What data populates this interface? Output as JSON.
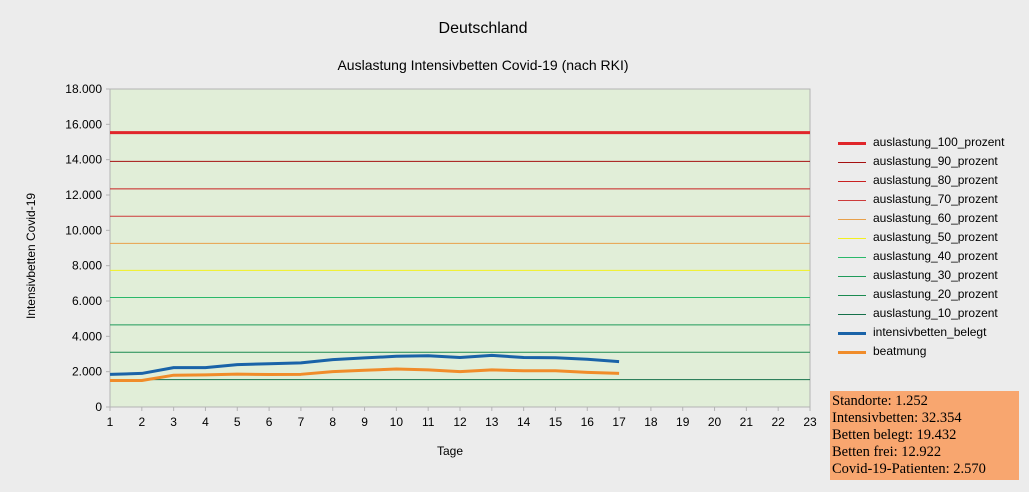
{
  "chart_data": {
    "type": "line",
    "title": "Deutschland",
    "subtitle": "Auslastung Intensivbetten Covid-19 (nach RKI)",
    "xlabel": "Tage",
    "ylabel": "Intensivbetten Covid-19",
    "xlim": [
      1,
      23
    ],
    "ylim": [
      0,
      18000
    ],
    "x_ticks": [
      "1",
      "2",
      "3",
      "4",
      "5",
      "6",
      "7",
      "8",
      "9",
      "10",
      "11",
      "12",
      "13",
      "14",
      "15",
      "16",
      "17",
      "18",
      "19",
      "20",
      "21",
      "22",
      "23"
    ],
    "y_ticks": [
      {
        "value": 0,
        "label": "0"
      },
      {
        "value": 2000,
        "label": "2.000"
      },
      {
        "value": 4000,
        "label": "4.000"
      },
      {
        "value": 6000,
        "label": "6.000"
      },
      {
        "value": 8000,
        "label": "8.000"
      },
      {
        "value": 10000,
        "label": "10.000"
      },
      {
        "value": 12000,
        "label": "12.000"
      },
      {
        "value": 14000,
        "label": "14.000"
      },
      {
        "value": 16000,
        "label": "16.000"
      },
      {
        "value": 18000,
        "label": "18.000"
      }
    ],
    "grid": false,
    "background": "#e1eed8",
    "legend_position": "right",
    "reference_lines": [
      {
        "name": "auslastung_100_prozent",
        "value": 15530,
        "color": "#e0262a",
        "bold": true
      },
      {
        "name": "auslastung_90_prozent",
        "value": 13900,
        "color": "#a51010",
        "bold": false
      },
      {
        "name": "auslastung_80_prozent",
        "value": 12350,
        "color": "#c92020",
        "bold": false
      },
      {
        "name": "auslastung_70_prozent",
        "value": 10800,
        "color": "#cd3a3a",
        "bold": false
      },
      {
        "name": "auslastung_60_prozent",
        "value": 9260,
        "color": "#e8a04a",
        "bold": false
      },
      {
        "name": "auslastung_50_prozent",
        "value": 7730,
        "color": "#f2f020",
        "bold": false
      },
      {
        "name": "auslastung_40_prozent",
        "value": 6200,
        "color": "#2ab86a",
        "bold": false
      },
      {
        "name": "auslastung_30_prozent",
        "value": 4650,
        "color": "#1f9a5a",
        "bold": false
      },
      {
        "name": "auslastung_20_prozent",
        "value": 3100,
        "color": "#1a8a50",
        "bold": false
      },
      {
        "name": "auslastung_10_prozent",
        "value": 1550,
        "color": "#15704a",
        "bold": false
      }
    ],
    "series": [
      {
        "name": "intensivbetten_belegt",
        "color": "#1a63a8",
        "x": [
          1,
          2,
          3,
          4,
          5,
          6,
          7,
          8,
          9,
          10,
          11,
          12,
          13,
          14,
          15,
          16,
          17
        ],
        "values": [
          1850,
          1900,
          2230,
          2230,
          2400,
          2450,
          2500,
          2680,
          2780,
          2870,
          2900,
          2800,
          2920,
          2800,
          2790,
          2700,
          2570
        ]
      },
      {
        "name": "beatmung",
        "color": "#f08c2a",
        "x": [
          1,
          2,
          3,
          4,
          5,
          6,
          7,
          8,
          9,
          10,
          11,
          12,
          13,
          14,
          15,
          16,
          17
        ],
        "values": [
          1500,
          1500,
          1800,
          1820,
          1860,
          1840,
          1850,
          2000,
          2080,
          2150,
          2100,
          2000,
          2100,
          2050,
          2050,
          1960,
          1900
        ]
      }
    ]
  },
  "info_box": {
    "color": "#f8a66f",
    "lines": [
      "Standorte: 1.252",
      "Intensivbetten: 32.354",
      "Betten belegt: 19.432",
      "Betten frei: 12.922",
      "Covid-19-Patienten: 2.570"
    ]
  }
}
